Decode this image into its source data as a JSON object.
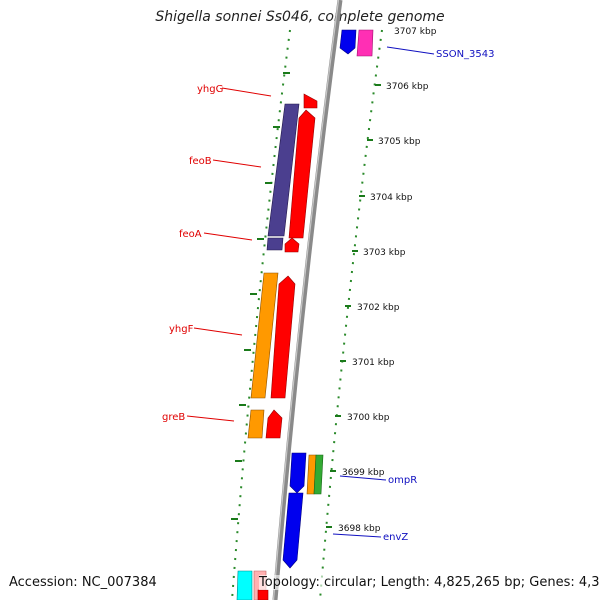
{
  "title": "Shigella sonnei Ss046, complete genome",
  "footer": {
    "accession": "Accession: NC_007384",
    "topology": "Topology: circular; Length: 4,825,265 bp; Genes: 4,337"
  },
  "ticks": [
    "3707 kbp",
    "3706 kbp",
    "3705 kbp",
    "3704 kbp",
    "3703 kbp",
    "3702 kbp",
    "3701 kbp",
    "3700 kbp",
    "3699 kbp",
    "3698 kbp"
  ],
  "gene_labels": {
    "yhgG": "yhgG",
    "feoB": "feoB",
    "feoA": "feoA",
    "yhgF": "yhgF",
    "greB": "greB",
    "SSON_3543": "SSON_3543",
    "ompR": "ompR",
    "envZ": "envZ"
  },
  "colors": {
    "backbone": "#888888",
    "dots": "#2a8a2a",
    "red": "#ff0000",
    "purple": "#4b3f8f",
    "orange": "#ff9900",
    "blue": "#0000ee",
    "magenta": "#ff2fb4",
    "cyan": "#00ffff",
    "pink": "#ffb0b0",
    "green": "#33aa33"
  }
}
